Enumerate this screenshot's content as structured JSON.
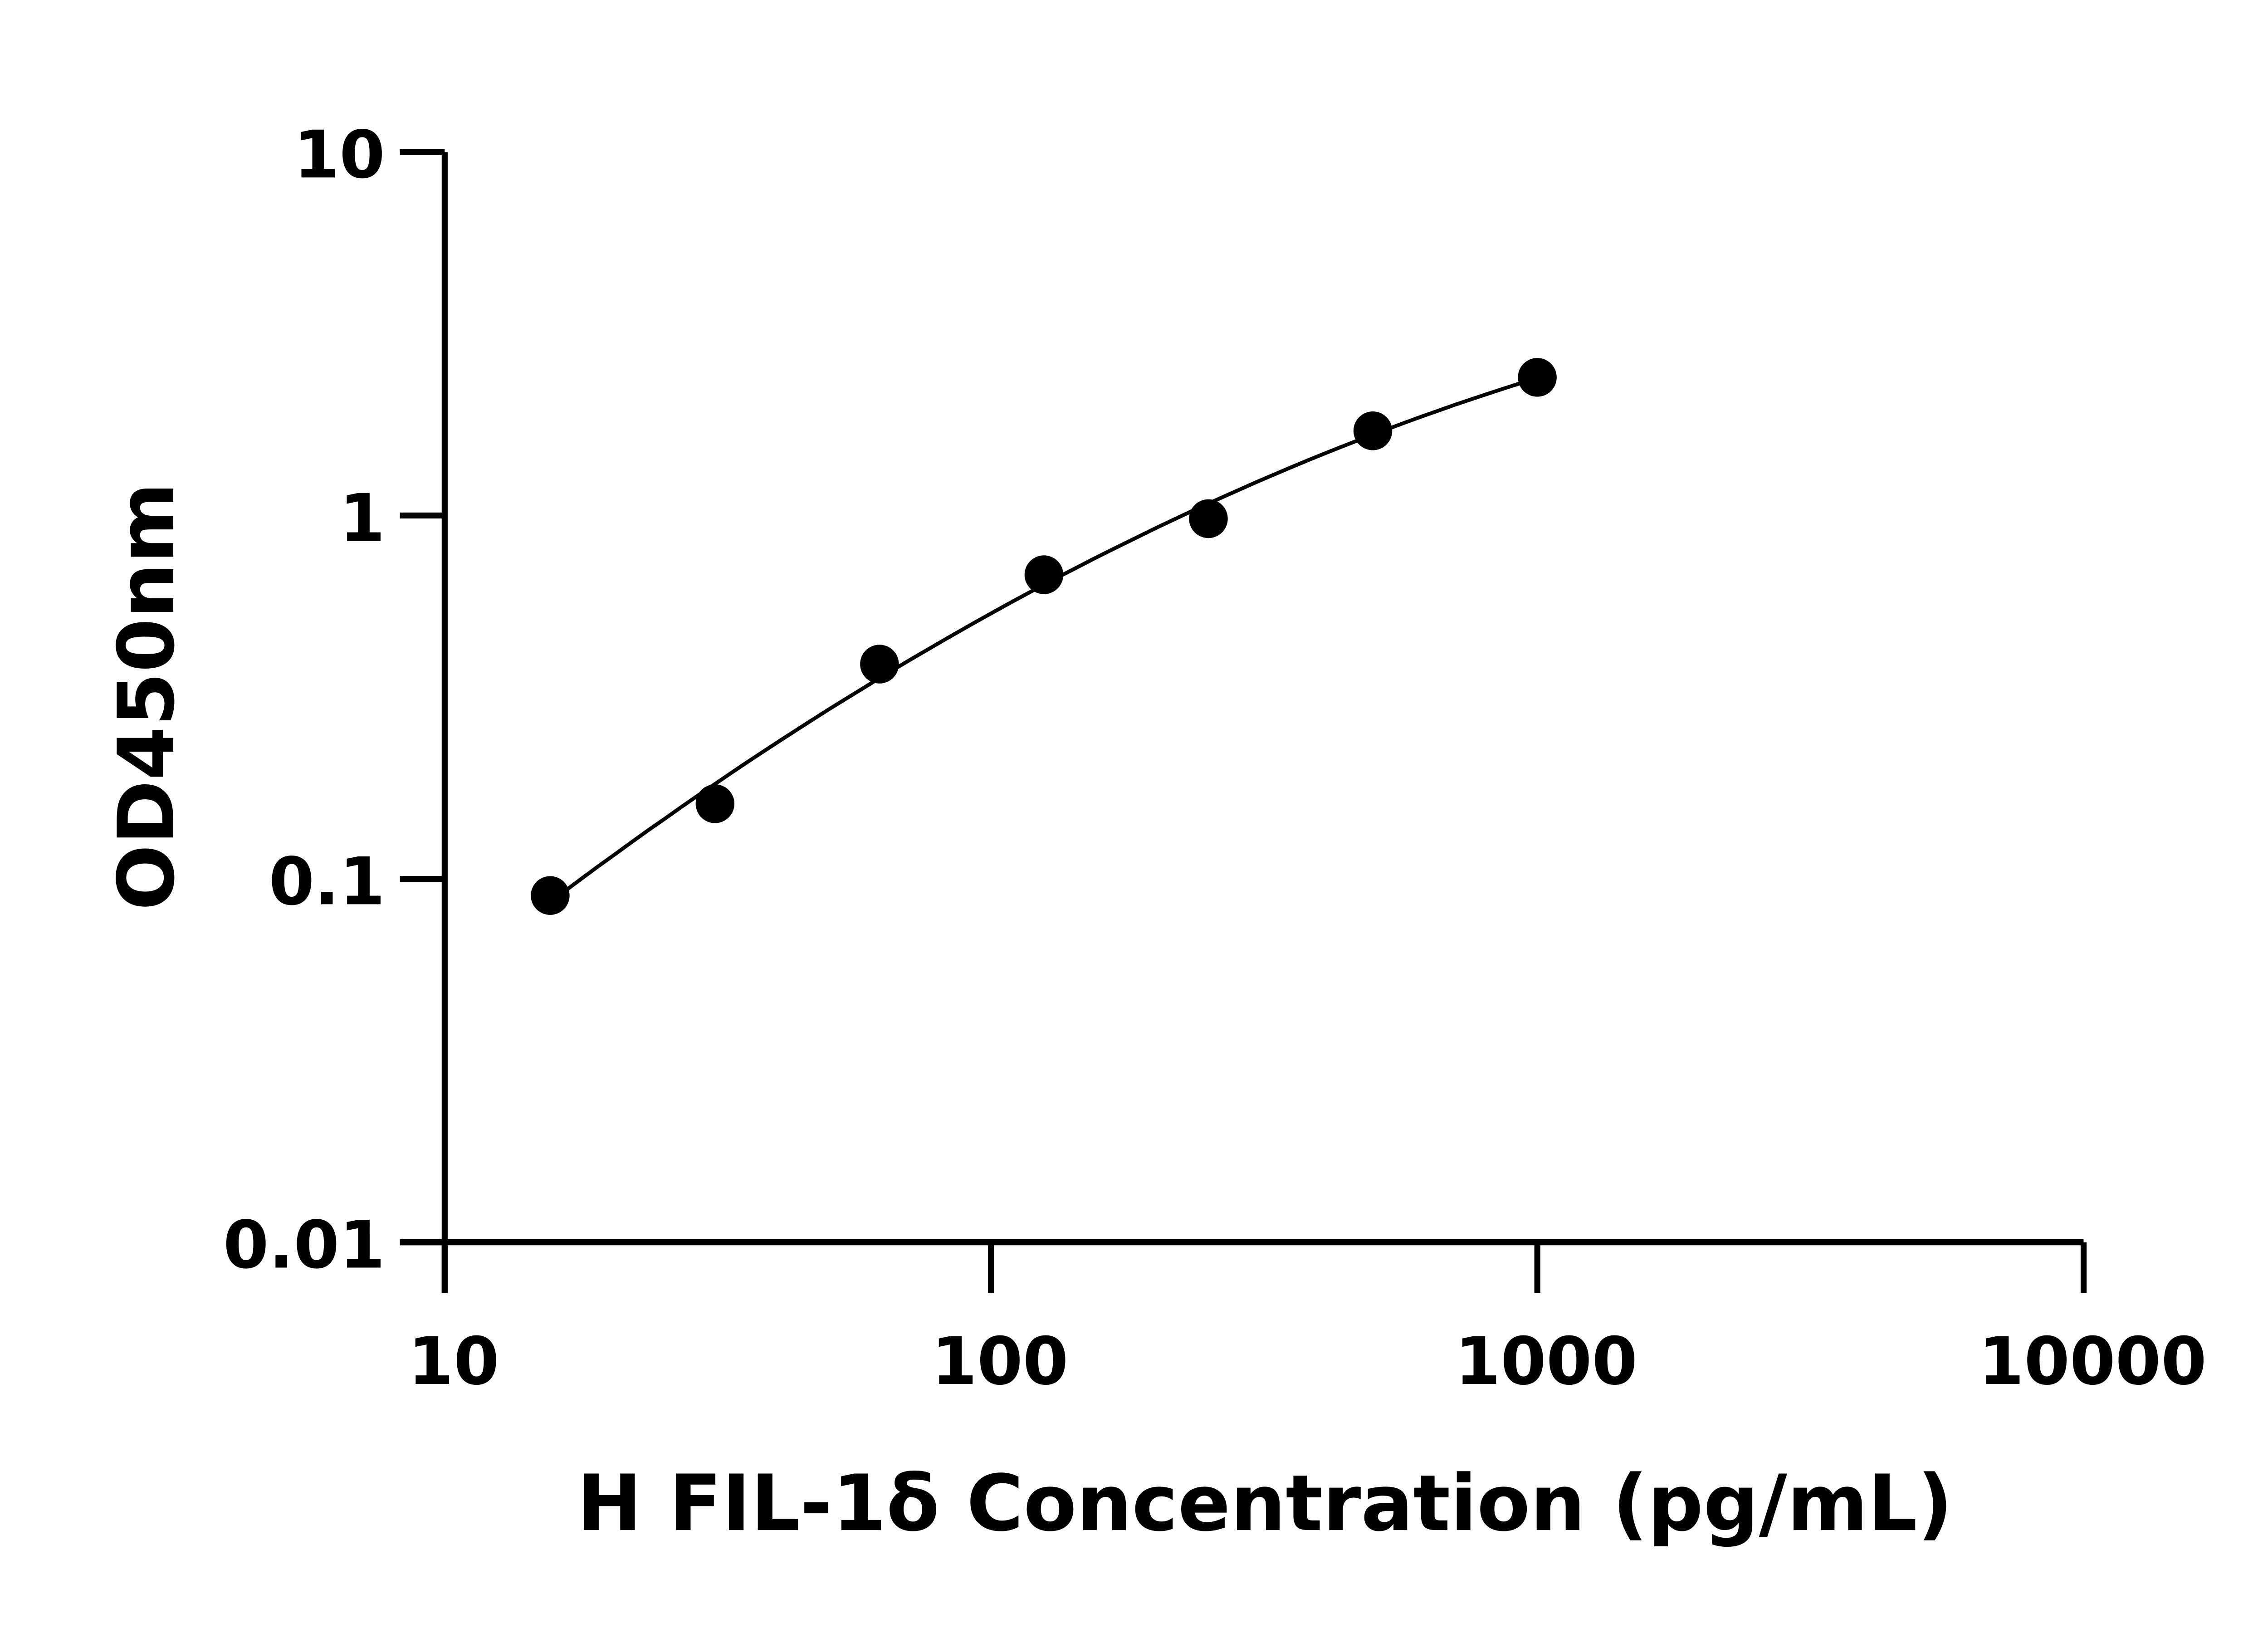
{
  "chart_data": {
    "type": "scatter",
    "xlabel": "H FIL-1δ Concentration (pg/mL)",
    "ylabel": "OD450nm",
    "xscale": "log",
    "yscale": "log",
    "xlim": [
      10,
      10000
    ],
    "ylim": [
      0.01,
      10
    ],
    "x_ticks": [
      "10",
      "100",
      "1000",
      "10000"
    ],
    "y_ticks": [
      "0.01",
      "0.1",
      "1",
      "10"
    ],
    "grid": false,
    "fit_line": true,
    "color": "#000000",
    "series": [
      {
        "x": [
          15.6,
          31.25,
          62.5,
          125,
          250,
          500,
          1000
        ],
        "y": [
          0.09,
          0.161,
          0.39,
          0.687,
          0.98,
          1.71,
          2.4
        ]
      }
    ]
  }
}
